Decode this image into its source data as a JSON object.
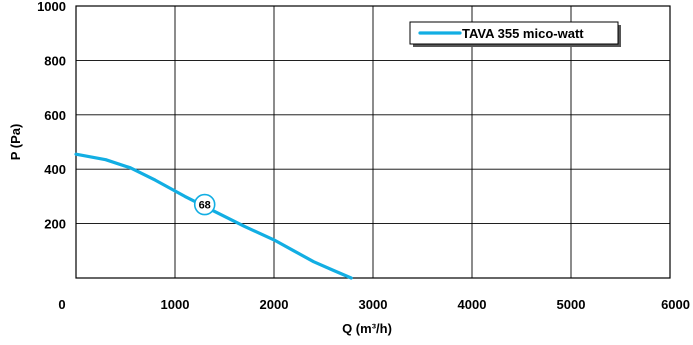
{
  "chart_data": {
    "type": "line",
    "xlabel": "Q (m³/h)",
    "ylabel": "P (Pa)",
    "xlim": [
      0,
      6000
    ],
    "ylim": [
      0,
      1000
    ],
    "x_ticks": [
      "0",
      "1000",
      "2000",
      "3000",
      "4000",
      "5000",
      "6000"
    ],
    "y_ticks": [
      "200",
      "400",
      "600",
      "800",
      "1000"
    ],
    "grid": true,
    "legend_position": "top-right",
    "series": [
      {
        "name": "TAVA 355 mico-watt",
        "color": "#12aee3",
        "x": [
          0,
          300,
          550,
          800,
          1100,
          1400,
          1700,
          2000,
          2200,
          2400,
          2600,
          2780
        ],
        "y": [
          455,
          435,
          405,
          360,
          300,
          245,
          190,
          140,
          100,
          60,
          28,
          0
        ]
      }
    ],
    "annotations": [
      {
        "text": "68",
        "x": 1300,
        "y": 270
      }
    ]
  }
}
